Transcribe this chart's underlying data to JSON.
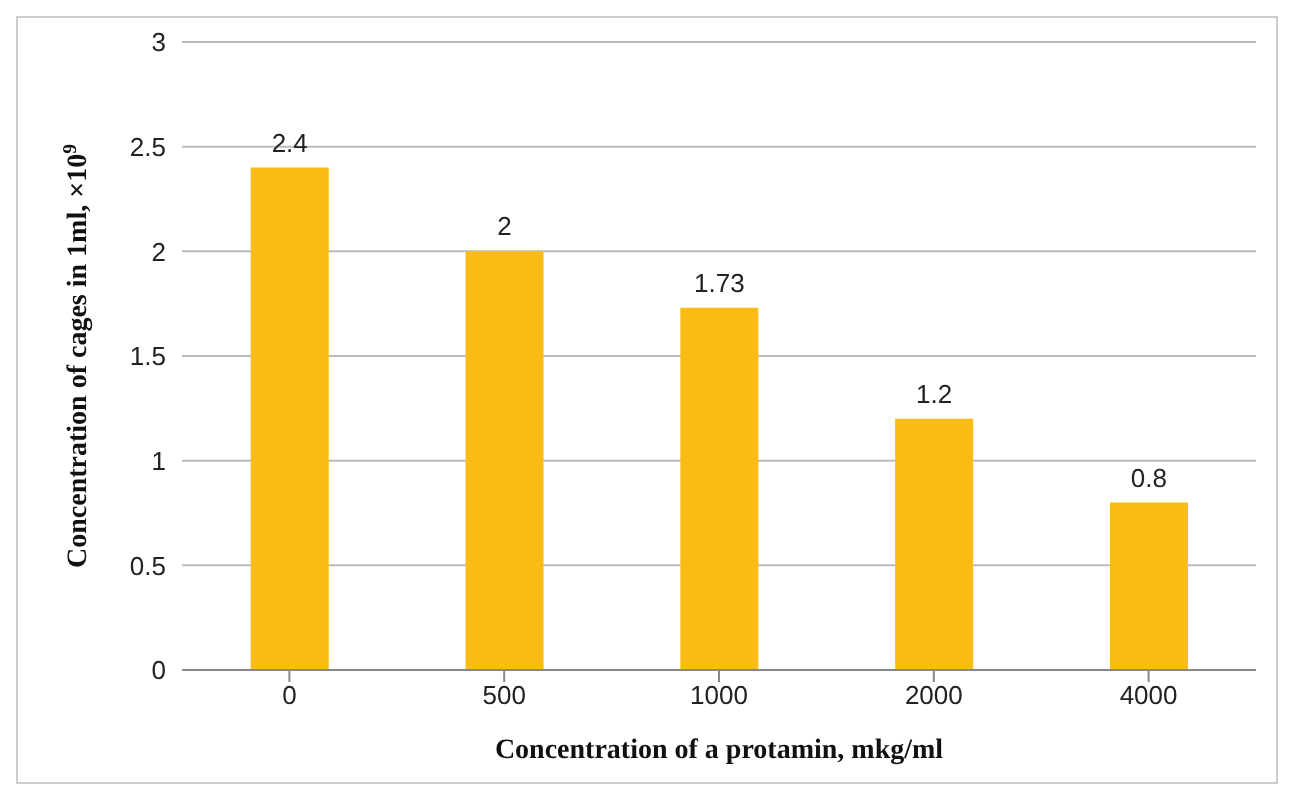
{
  "chart_data": {
    "type": "bar",
    "xlabel": "Concentration of a protamin, mkg/ml",
    "ylabel": "Concentration of cages in 1ml, ×10$^{9}$",
    "categories": [
      "0",
      "500",
      "1000",
      "2000",
      "4000"
    ],
    "values": [
      2.4,
      2,
      1.73,
      1.2,
      0.8
    ],
    "color": "#f9bc15",
    "ylim": [
      0,
      3
    ],
    "yticks": [
      0,
      0.5,
      1,
      1.5,
      2,
      2.5,
      3
    ],
    "grid": "y",
    "data_labels": true
  }
}
